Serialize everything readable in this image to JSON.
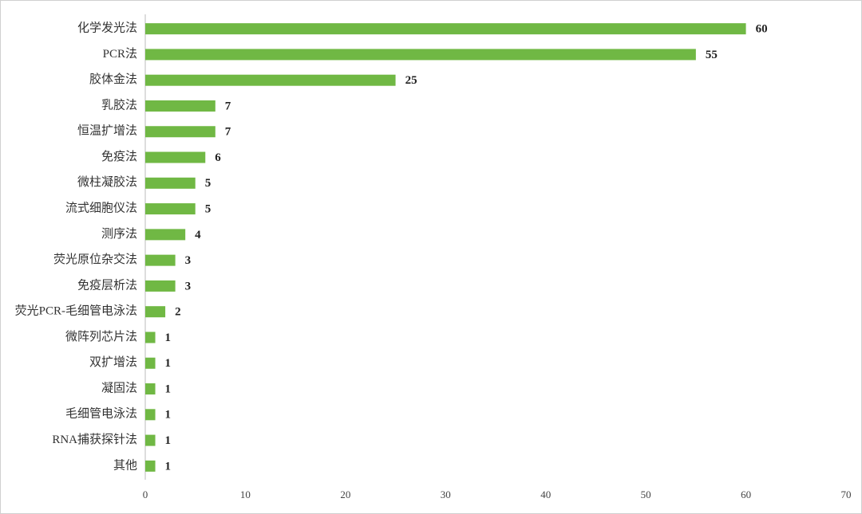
{
  "chart_data": {
    "type": "bar",
    "orientation": "horizontal",
    "categories": [
      "化学发光法",
      "PCR法",
      "胶体金法",
      "乳胶法",
      "恒温扩增法",
      "免疫法",
      "微柱凝胶法",
      "流式细胞仪法",
      "测序法",
      "荧光原位杂交法",
      "免疫层析法",
      "荧光PCR-毛细管电泳法",
      "微阵列芯片法",
      "双扩增法",
      "凝固法",
      "毛细管电泳法",
      "RNA捕获探针法",
      "其他"
    ],
    "values": [
      60,
      55,
      25,
      7,
      7,
      6,
      5,
      5,
      4,
      3,
      3,
      2,
      1,
      1,
      1,
      1,
      1,
      1
    ],
    "color": "#70b844",
    "xlim": [
      0,
      70
    ],
    "xticks": [
      0,
      10,
      20,
      30,
      40,
      50,
      60,
      70
    ],
    "grid": false
  }
}
